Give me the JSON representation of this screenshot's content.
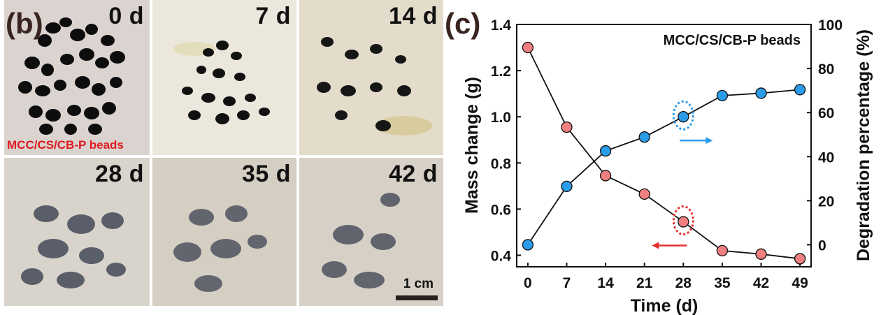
{
  "panel_b": {
    "letter": "(b)",
    "sample_label": "MCC/CS/CB-P beads",
    "scale_label": "1 cm",
    "tiles": [
      {
        "day": "0 d"
      },
      {
        "day": "7 d"
      },
      {
        "day": "14 d"
      },
      {
        "day": "28 d"
      },
      {
        "day": "35 d"
      },
      {
        "day": "42 d"
      }
    ]
  },
  "panel_c": {
    "letter": "(c)"
  },
  "chart_data": {
    "type": "line",
    "title": "MCC/CS/CB-P beads",
    "xlabel": "Time (d)",
    "ylabel_left": "Mass change (g)",
    "ylabel_right": "Degradation percentage (%)",
    "x": [
      0,
      7,
      14,
      21,
      28,
      35,
      42,
      49
    ],
    "xticks": [
      "0",
      "7",
      "14",
      "21",
      "28",
      "35",
      "42",
      "49"
    ],
    "xlim": [
      -2,
      51
    ],
    "ylim_left": [
      0.35,
      1.4
    ],
    "ylim_right": [
      -10,
      100
    ],
    "yticks_left": [
      "0.4",
      "0.6",
      "0.8",
      "1.0",
      "1.2",
      "1.4"
    ],
    "yticks_right": [
      "0",
      "20",
      "40",
      "60",
      "80",
      "100"
    ],
    "series": [
      {
        "axis": "left",
        "color": "#f08080",
        "values": [
          1.3,
          0.955,
          0.745,
          0.665,
          0.545,
          0.42,
          0.405,
          0.385
        ]
      },
      {
        "axis": "right",
        "color": "#2b9ce9",
        "values": [
          0,
          26.5,
          42.6,
          48.9,
          58.1,
          67.7,
          68.8,
          70.4
        ]
      }
    ],
    "grid": false,
    "annotations": [
      {
        "series": 1,
        "point": 4,
        "arrow": "right",
        "color": "#2b9ce9"
      },
      {
        "series": 0,
        "point": 4,
        "arrow": "left",
        "color": "#e8302e"
      }
    ]
  }
}
